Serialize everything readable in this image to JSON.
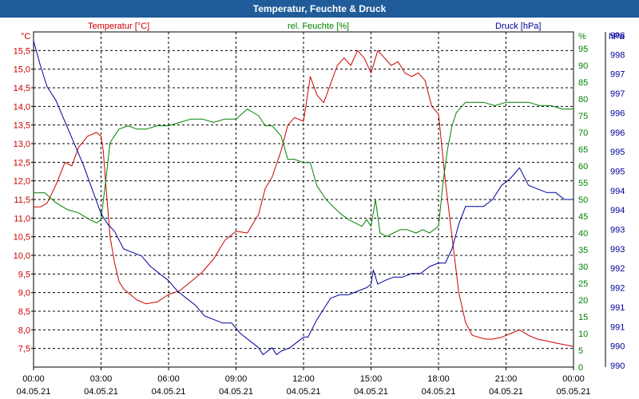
{
  "chart_data": {
    "type": "line",
    "title": "Temperatur, Feuchte & Druck",
    "x_ticks": [
      {
        "time": "00:00",
        "date": "04.05.21"
      },
      {
        "time": "03:00",
        "date": "04.05.21"
      },
      {
        "time": "06:00",
        "date": "04.05.21"
      },
      {
        "time": "09:00",
        "date": "04.05.21"
      },
      {
        "time": "12:00",
        "date": "04.05.21"
      },
      {
        "time": "15:00",
        "date": "04.05.21"
      },
      {
        "time": "18:00",
        "date": "04.05.21"
      },
      {
        "time": "21:00",
        "date": "04.05.21"
      },
      {
        "time": "00:00",
        "date": "05.05.21"
      }
    ],
    "x_range_hours": [
      0,
      24
    ],
    "axes": {
      "temperature": {
        "label": "Temperatur [°C]",
        "unit": "°C",
        "min": 7.0,
        "max": 16.0,
        "ticks": [
          "7,5",
          "8,0",
          "8,5",
          "9,0",
          "9,5",
          "10,0",
          "10,5",
          "11,0",
          "11,5",
          "12,0",
          "12,5",
          "13,0",
          "13,5",
          "14,0",
          "14,5",
          "15,0",
          "15,5"
        ],
        "color": "#cc0000"
      },
      "humidity": {
        "label": "rel. Feuchte [%]",
        "unit": "%",
        "min": 0,
        "max": 100,
        "ticks": [
          "0",
          "5",
          "10",
          "15",
          "20",
          "25",
          "30",
          "35",
          "40",
          "45",
          "50",
          "55",
          "60",
          "65",
          "70",
          "75",
          "80",
          "85",
          "90",
          "95"
        ],
        "color": "#008000"
      },
      "pressure": {
        "label": "Druck [hPa]",
        "unit": "hPa",
        "ticks": [
          "990",
          "990",
          "991",
          "991",
          "992",
          "992",
          "993",
          "993",
          "994",
          "994",
          "995",
          "995",
          "996",
          "996",
          "997",
          "997",
          "998",
          "998"
        ],
        "color": "#000099"
      }
    },
    "series": [
      {
        "name": "Temperatur [°C]",
        "color": "#cc0000",
        "x": [
          0,
          0.3,
          0.6,
          1,
          1.4,
          1.7,
          2,
          2.4,
          2.8,
          3,
          3.1,
          3.2,
          3.4,
          3.6,
          3.8,
          4,
          4.3,
          4.6,
          5,
          5.5,
          6,
          6.5,
          7,
          7.5,
          8,
          8.5,
          9,
          9.5,
          10,
          10.3,
          10.6,
          11,
          11.3,
          11.6,
          12,
          12.3,
          12.6,
          12.9,
          13.2,
          13.5,
          13.8,
          14.1,
          14.4,
          14.7,
          15,
          15.3,
          15.6,
          15.9,
          16.2,
          16.5,
          16.8,
          17.1,
          17.4,
          17.7,
          18,
          18.3,
          18.6,
          18.9,
          19.2,
          19.5,
          19.8,
          20.1,
          20.4,
          20.8,
          21.2,
          21.6,
          22,
          22.4,
          22.8,
          23.2,
          23.6,
          24
        ],
        "y": [
          11.3,
          11.3,
          11.4,
          11.9,
          12.5,
          12.4,
          12.9,
          13.2,
          13.3,
          13.2,
          12.8,
          12.0,
          10.5,
          9.8,
          9.3,
          9.1,
          8.95,
          8.8,
          8.7,
          8.75,
          8.95,
          9.05,
          9.3,
          9.55,
          9.9,
          10.4,
          10.65,
          10.6,
          11.1,
          11.8,
          12.1,
          12.8,
          13.5,
          13.7,
          13.6,
          14.8,
          14.3,
          14.1,
          14.6,
          15.1,
          15.3,
          15.1,
          15.5,
          15.3,
          14.9,
          15.5,
          15.3,
          15.1,
          15.2,
          14.9,
          14.8,
          14.9,
          14.7,
          14.0,
          13.8,
          12.0,
          10.5,
          9.0,
          8.2,
          7.85,
          7.8,
          7.75,
          7.75,
          7.8,
          7.9,
          8.0,
          7.85,
          7.75,
          7.7,
          7.65,
          7.6,
          7.55
        ]
      },
      {
        "name": "rel. Feuchte [%]",
        "color": "#008000",
        "x": [
          0,
          0.5,
          1,
          1.5,
          2,
          2.5,
          2.8,
          3.0,
          3.2,
          3.4,
          3.8,
          4.2,
          4.6,
          5.0,
          5.5,
          6.0,
          6.5,
          7,
          7.5,
          8,
          8.5,
          9.0,
          9.5,
          10,
          10.3,
          10.6,
          11,
          11.3,
          11.6,
          12,
          12.3,
          12.6,
          13,
          13.3,
          13.6,
          14,
          14.3,
          14.6,
          14.8,
          15,
          15.2,
          15.4,
          15.7,
          16,
          16.3,
          16.6,
          17,
          17.3,
          17.6,
          17.8,
          18,
          18.2,
          18.4,
          18.6,
          18.8,
          19.2,
          19.6,
          20,
          20.5,
          21,
          21.5,
          22,
          22.5,
          23,
          23.5,
          24
        ],
        "y": [
          52,
          52,
          49,
          47,
          46,
          44,
          43,
          44,
          55,
          67,
          71,
          72,
          71,
          71,
          72,
          72,
          73,
          74,
          74,
          73,
          74,
          74,
          77,
          75,
          72,
          72,
          69,
          62,
          62,
          61,
          61,
          54,
          50,
          48,
          46,
          44,
          43,
          42,
          44,
          42,
          50,
          40,
          39,
          40,
          41,
          41,
          40,
          41,
          40,
          41,
          42,
          55,
          65,
          72,
          76,
          79,
          79,
          79,
          78,
          79,
          79,
          79,
          78,
          78,
          77,
          77
        ]
      },
      {
        "name": "Druck [hPa]",
        "color": "#000099",
        "x": [
          0,
          0.3,
          0.6,
          1,
          1.4,
          1.8,
          2.2,
          2.6,
          3,
          3.3,
          3.6,
          4,
          4.4,
          4.8,
          5.2,
          5.6,
          6,
          6.4,
          6.8,
          7.2,
          7.6,
          8,
          8.4,
          8.8,
          9.2,
          9.6,
          10,
          10.2,
          10.4,
          10.6,
          10.8,
          11,
          11.4,
          11.8,
          12,
          12.2,
          12.6,
          12.9,
          13.2,
          13.6,
          14,
          14.4,
          14.8,
          15,
          15.1,
          15.3,
          15.6,
          16,
          16.4,
          16.8,
          17.2,
          17.6,
          18,
          18.3,
          18.6,
          18.9,
          19.2,
          19.6,
          20,
          20.4,
          20.8,
          21.2,
          21.6,
          22,
          22.4,
          22.8,
          23.2,
          23.6,
          24
        ],
        "y": [
          998.5,
          997.8,
          997.2,
          996.8,
          996.2,
          995.6,
          995.0,
          994.3,
          993.6,
          993.3,
          993.1,
          992.6,
          992.5,
          992.4,
          992.1,
          991.9,
          991.7,
          991.4,
          991.2,
          991.0,
          990.7,
          990.6,
          990.5,
          990.5,
          990.2,
          990.0,
          989.8,
          989.6,
          989.7,
          989.8,
          989.6,
          989.7,
          989.8,
          990.0,
          990.1,
          990.1,
          990.6,
          990.9,
          991.2,
          991.3,
          991.3,
          991.4,
          991.5,
          991.6,
          992.0,
          991.6,
          991.7,
          991.8,
          991.8,
          991.9,
          991.9,
          992.1,
          992.2,
          992.2,
          992.6,
          993.3,
          993.8,
          993.8,
          993.8,
          994.0,
          994.4,
          994.6,
          994.9,
          994.4,
          994.3,
          994.2,
          994.2,
          994.0,
          994.0
        ]
      }
    ],
    "pressure_scale": {
      "data_min": 989.25,
      "data_max": 998.75
    }
  }
}
